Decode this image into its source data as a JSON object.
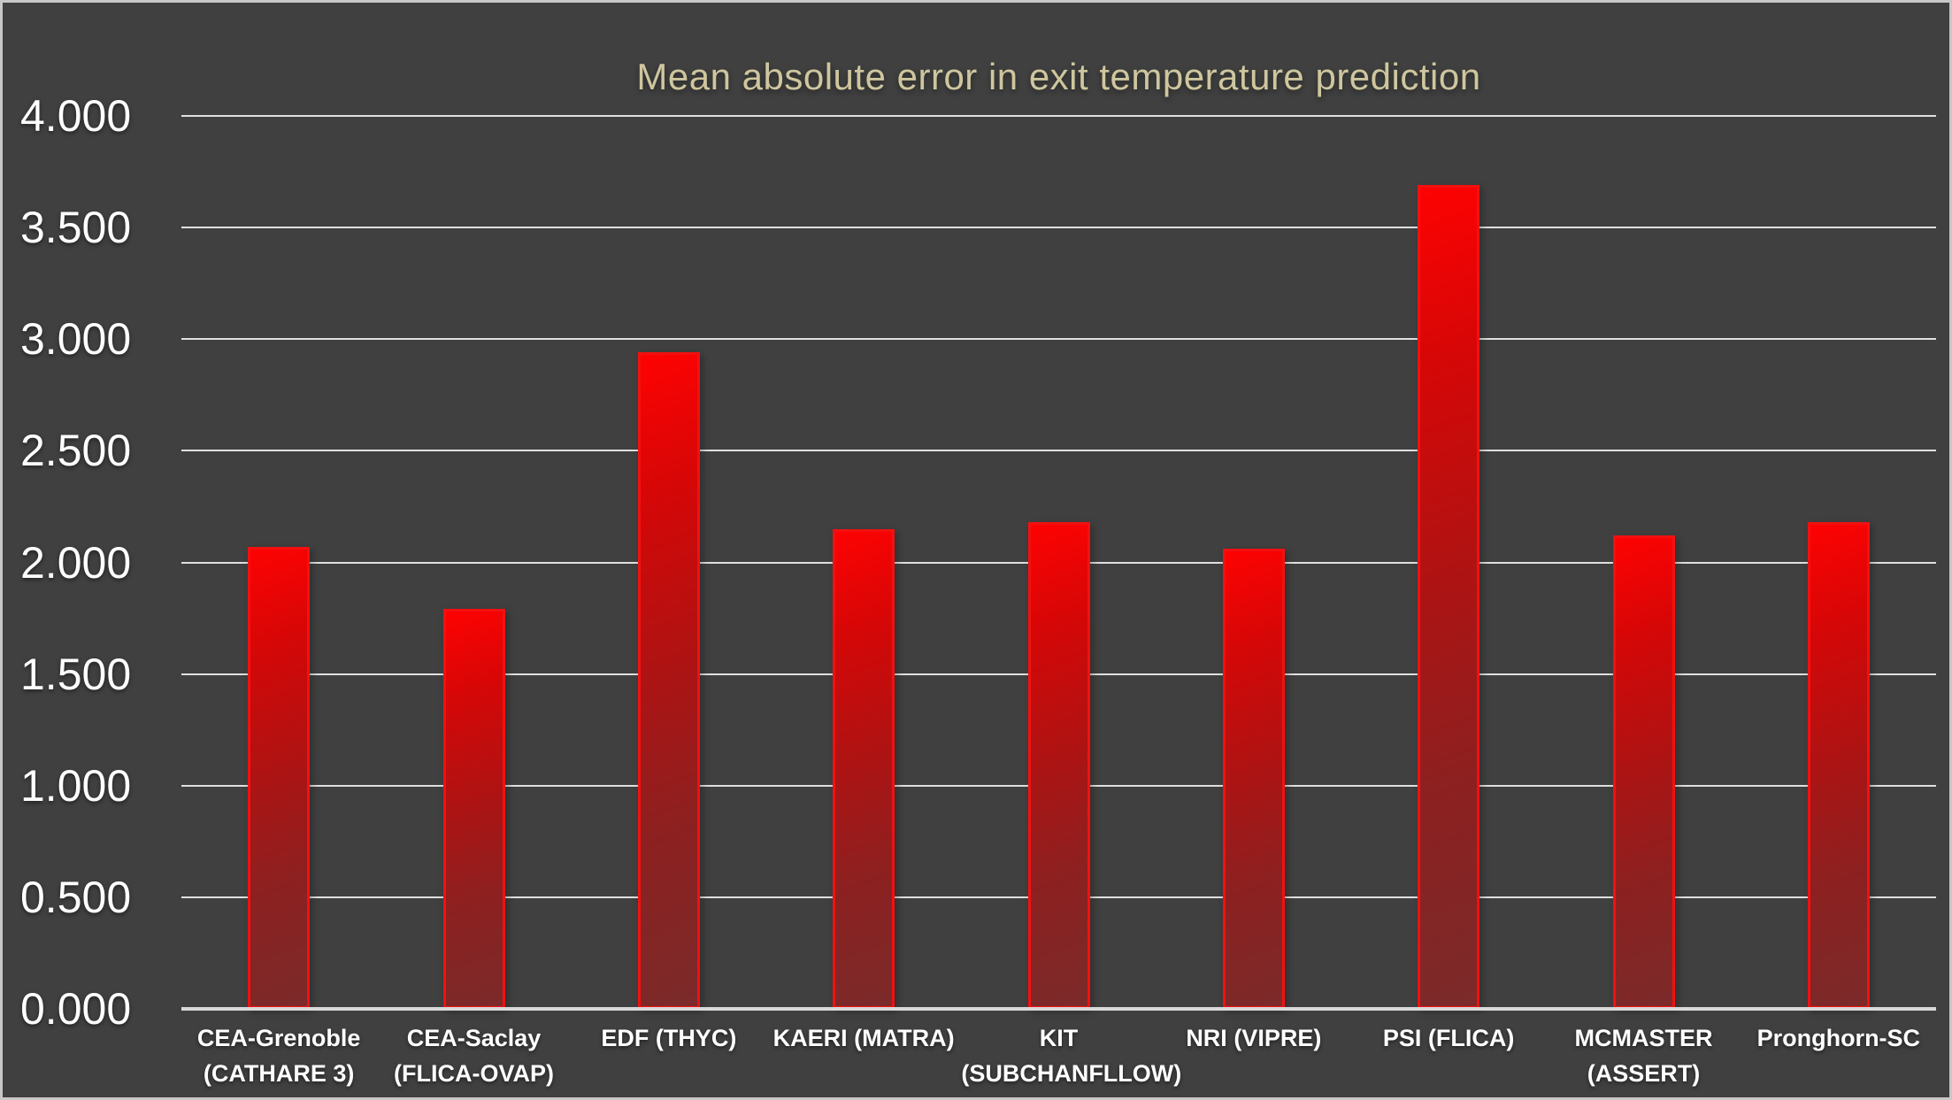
{
  "frame": {
    "background_color": "#404040",
    "border_color": "#c8c8c8"
  },
  "chart_data": {
    "type": "bar",
    "title": "Mean absolute error in exit temperature prediction",
    "categories": [
      "CEA-Grenoble (CATHARE 3)",
      "CEA-Saclay (FLICA-OVAP)",
      "EDF (THYC)",
      "KAERI (MATRA)",
      "KIT (SUBCHANFLLOW)",
      "NRI (VIPRE)",
      "PSI (FLICA)",
      "MCMASTER (ASSERT)",
      "Pronghorn-SC"
    ],
    "values": [
      2.07,
      1.79,
      2.94,
      2.15,
      2.18,
      2.06,
      3.69,
      2.12,
      2.18
    ],
    "xlabel": "",
    "ylabel": "",
    "ylim": [
      0,
      4
    ],
    "ytick_step": 0.5,
    "ytick_decimals": 3,
    "grid": true,
    "legend": false,
    "colors": {
      "title": "#cec69e",
      "axis_labels": "#ffffff",
      "gridline": "#e0e0e0",
      "axis_line": "#d9d9d9",
      "bar_border": "#f31010",
      "bar_gradient_top": "#fe0202",
      "bar_gradient_mid": "#ab1414",
      "bar_gradient_bottom": "#7b2a2a"
    }
  }
}
